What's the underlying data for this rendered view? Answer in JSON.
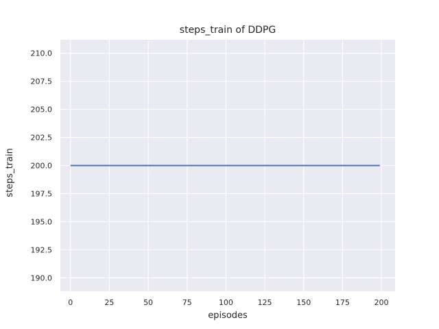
{
  "figure": {
    "background": "#FFFFFF"
  },
  "chart_data": {
    "type": "line",
    "title": "steps_train of DDPG",
    "xlabel": "episodes",
    "ylabel": "steps_train",
    "x_ticks": [
      "0",
      "25",
      "50",
      "75",
      "100",
      "125",
      "150",
      "175",
      "200"
    ],
    "y_ticks": [
      "190.0",
      "192.5",
      "195.0",
      "197.5",
      "200.0",
      "202.5",
      "205.0",
      "207.5",
      "210.0"
    ],
    "xlim": [
      -6.5,
      208.8
    ],
    "ylim": [
      188.8,
      211.2
    ],
    "grid": true,
    "legend_position": "none",
    "style": {
      "plot_background": "#EAEAF2",
      "grid_color": "#FFFFFF",
      "text_color": "#262626"
    },
    "series": [
      {
        "name": "steps_train",
        "color": "#4C72B0",
        "x": [
          0,
          199
        ],
        "y": [
          200,
          200
        ]
      }
    ]
  }
}
